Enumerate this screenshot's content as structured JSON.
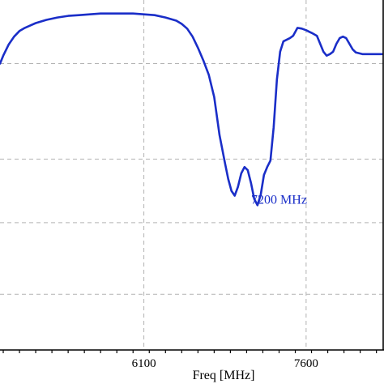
{
  "chart_data": {
    "type": "line",
    "title": "",
    "xlabel": "Freq [MHz]",
    "ylabel": "",
    "xlim": [
      4770,
      8320
    ],
    "ylim": [
      -42,
      2
    ],
    "grid": true,
    "x_ticks": [
      {
        "value": 6100,
        "label": "6100"
      },
      {
        "value": 7600,
        "label": "7600"
      }
    ],
    "x_minor_step": 150,
    "y_gridlines": [
      -6,
      -18,
      -26,
      -35
    ],
    "annotation": {
      "text": "7200 MHz",
      "x": 7350,
      "y": -22
    },
    "series": [
      {
        "color": "#1a2ec8",
        "x": [
          4770,
          4800,
          4850,
          4900,
          4950,
          5000,
          5050,
          5100,
          5150,
          5200,
          5300,
          5400,
          5500,
          5600,
          5700,
          5800,
          5900,
          6000,
          6100,
          6200,
          6300,
          6400,
          6450,
          6500,
          6550,
          6600,
          6650,
          6700,
          6750,
          6800,
          6850,
          6880,
          6910,
          6940,
          6970,
          7000,
          7030,
          7060,
          7090,
          7120,
          7150,
          7180,
          7210,
          7240,
          7270,
          7300,
          7330,
          7360,
          7390,
          7420,
          7450,
          7480,
          7520,
          7560,
          7600,
          7630,
          7660,
          7700,
          7730,
          7760,
          7790,
          7820,
          7850,
          7880,
          7910,
          7940,
          7970,
          8000,
          8030,
          8060,
          8090,
          8120,
          8150,
          8180,
          8210,
          8240,
          8270,
          8300
        ],
        "y": [
          -6,
          -5,
          -3.6,
          -2.6,
          -1.9,
          -1.5,
          -1.2,
          -0.9,
          -0.7,
          -0.5,
          -0.2,
          0,
          0.1,
          0.2,
          0.3,
          0.3,
          0.3,
          0.3,
          0.2,
          0.1,
          -0.2,
          -0.6,
          -1,
          -1.6,
          -2.6,
          -4,
          -5.6,
          -7.4,
          -10.2,
          -15,
          -18.5,
          -20.5,
          -22,
          -22.6,
          -21.5,
          -19.8,
          -19,
          -19.4,
          -21,
          -23,
          -23.8,
          -22.5,
          -20,
          -19,
          -18.2,
          -14,
          -8,
          -4.5,
          -3.2,
          -3,
          -2.8,
          -2.5,
          -1.5,
          -1.6,
          -1.8,
          -2,
          -2.2,
          -2.5,
          -3.5,
          -4.5,
          -5,
          -4.8,
          -4.5,
          -3.5,
          -2.8,
          -2.6,
          -2.8,
          -3.5,
          -4.2,
          -4.6,
          -4.7,
          -4.8,
          -4.8,
          -4.8,
          -4.8,
          -4.8,
          -4.8,
          -4.8
        ]
      }
    ]
  }
}
